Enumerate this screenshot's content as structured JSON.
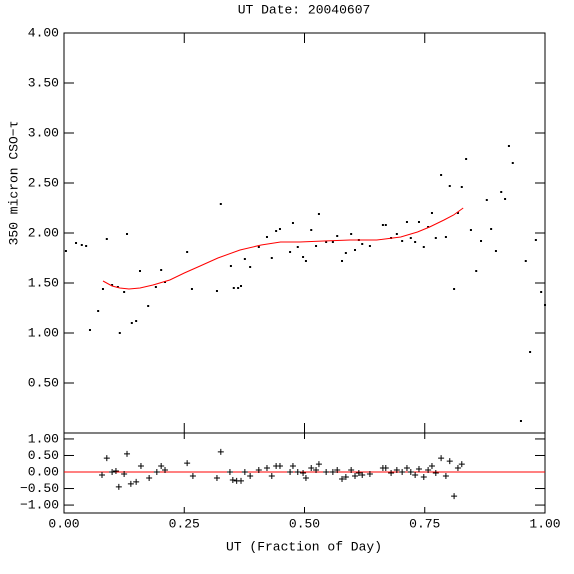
{
  "chart_data": [
    {
      "type": "scatter",
      "title": "UT Date: 20040607",
      "y_label": "350 micron CSO−τ",
      "xlim": [
        0,
        1
      ],
      "xticks": [
        0,
        0.25,
        0.5,
        0.75,
        1
      ],
      "ylim": [
        0,
        4
      ],
      "yticks": [
        {
          "value": 0.5,
          "label": "0.50"
        },
        {
          "value": 1,
          "label": "1.00"
        },
        {
          "value": 1.5,
          "label": "1.50"
        },
        {
          "value": 2,
          "label": "2.00"
        },
        {
          "value": 2.5,
          "label": "2.50"
        },
        {
          "value": 3,
          "label": "3.00"
        },
        {
          "value": 3.5,
          "label": "3.50"
        },
        {
          "value": 4,
          "label": "4.00"
        }
      ],
      "series": [
        {
          "marker": "dot",
          "color": "#000000",
          "x": [
            0.004,
            0.025,
            0.037,
            0.046,
            0.054,
            0.071,
            0.081,
            0.089,
            0.1,
            0.112,
            0.116,
            0.125,
            0.131,
            0.141,
            0.15,
            0.158,
            0.175,
            0.191,
            0.202,
            0.21,
            0.256,
            0.266,
            0.318,
            0.326,
            0.347,
            0.353,
            0.362,
            0.368,
            0.376,
            0.387,
            0.405,
            0.422,
            0.432,
            0.441,
            0.449,
            0.47,
            0.476,
            0.486,
            0.497,
            0.503,
            0.514,
            0.524,
            0.53,
            0.545,
            0.559,
            0.568,
            0.578,
            0.586,
            0.597,
            0.605,
            0.613,
            0.62,
            0.636,
            0.663,
            0.669,
            0.68,
            0.692,
            0.703,
            0.713,
            0.721,
            0.73,
            0.738,
            0.748,
            0.757,
            0.765,
            0.773,
            0.784,
            0.794,
            0.802,
            0.811,
            0.819,
            0.827,
            0.836,
            0.846,
            0.857,
            0.867,
            0.879,
            0.888,
            0.898,
            0.909,
            0.917,
            0.925,
            0.933,
            0.95,
            0.96,
            0.969,
            0.981,
            0.992,
            1.0
          ],
          "values": [
            1.82,
            1.9,
            1.88,
            1.87,
            1.03,
            1.22,
            1.44,
            1.94,
            1.48,
            1.46,
            1.0,
            1.41,
            1.99,
            1.1,
            1.12,
            1.62,
            1.27,
            1.46,
            1.63,
            1.51,
            1.81,
            1.44,
            1.42,
            2.29,
            1.67,
            1.45,
            1.45,
            1.47,
            1.74,
            1.66,
            1.86,
            1.96,
            1.75,
            2.02,
            2.04,
            1.81,
            2.1,
            1.86,
            1.76,
            1.72,
            2.03,
            1.87,
            2.19,
            1.91,
            1.91,
            1.97,
            1.72,
            1.8,
            1.99,
            1.83,
            1.93,
            1.89,
            1.87,
            2.08,
            2.08,
            1.95,
            1.99,
            1.92,
            2.11,
            1.95,
            1.91,
            2.11,
            1.86,
            2.06,
            2.2,
            1.95,
            2.58,
            1.96,
            2.47,
            1.44,
            2.2,
            2.46,
            2.74,
            2.03,
            1.62,
            1.92,
            2.33,
            2.04,
            1.82,
            2.41,
            2.34,
            2.87,
            2.7,
            0.12,
            1.72,
            0.81,
            1.93,
            1.41,
            1.28
          ]
        },
        {
          "marker": "line",
          "color": "#ff0000",
          "x": [
            0.081,
            0.1,
            0.116,
            0.135,
            0.158,
            0.185,
            0.22,
            0.25,
            0.283,
            0.32,
            0.366,
            0.41,
            0.45,
            0.49,
            0.54,
            0.595,
            0.65,
            0.7,
            0.735,
            0.76,
            0.79,
            0.81,
            0.83
          ],
          "values": [
            1.52,
            1.47,
            1.45,
            1.44,
            1.45,
            1.48,
            1.53,
            1.6,
            1.67,
            1.75,
            1.83,
            1.88,
            1.91,
            1.91,
            1.92,
            1.93,
            1.93,
            1.96,
            2.01,
            2.06,
            2.13,
            2.18,
            2.25
          ]
        }
      ]
    },
    {
      "type": "scatter",
      "x_label": "UT (Fraction of Day)",
      "xlim": [
        0,
        1
      ],
      "xticks": [
        {
          "value": 0,
          "label": "0.00"
        },
        {
          "value": 0.25,
          "label": "0.25"
        },
        {
          "value": 0.5,
          "label": "0.50"
        },
        {
          "value": 0.75,
          "label": "0.75"
        },
        {
          "value": 1,
          "label": "1.00"
        }
      ],
      "ylim": [
        -1.24,
        1.18
      ],
      "yticks": [
        {
          "value": -1,
          "label": "−1.00"
        },
        {
          "value": -0.5,
          "label": "−0.50"
        },
        {
          "value": 0,
          "label": "0.00"
        },
        {
          "value": 0.5,
          "label": "0.50"
        },
        {
          "value": 1,
          "label": "1.00"
        }
      ],
      "hline": {
        "value": 0,
        "color": "#ff0000"
      },
      "series": [
        {
          "marker": "plus",
          "color": "#000000",
          "x": [
            0.079,
            0.089,
            0.1,
            0.108,
            0.114,
            0.125,
            0.131,
            0.139,
            0.15,
            0.16,
            0.177,
            0.193,
            0.202,
            0.21,
            0.256,
            0.268,
            0.318,
            0.326,
            0.345,
            0.351,
            0.359,
            0.368,
            0.376,
            0.387,
            0.405,
            0.422,
            0.432,
            0.441,
            0.449,
            0.47,
            0.476,
            0.486,
            0.497,
            0.503,
            0.514,
            0.524,
            0.53,
            0.545,
            0.559,
            0.568,
            0.578,
            0.586,
            0.597,
            0.605,
            0.613,
            0.62,
            0.636,
            0.663,
            0.669,
            0.68,
            0.692,
            0.703,
            0.713,
            0.721,
            0.73,
            0.738,
            0.748,
            0.757,
            0.765,
            0.773,
            0.784,
            0.794,
            0.802,
            0.811,
            0.819,
            0.827
          ],
          "values": [
            -0.09,
            0.42,
            0.0,
            0.03,
            -0.45,
            -0.06,
            0.55,
            -0.36,
            -0.3,
            0.18,
            -0.18,
            0.0,
            0.18,
            0.06,
            0.27,
            -0.12,
            -0.18,
            0.61,
            0.0,
            -0.24,
            -0.27,
            -0.27,
            0.0,
            -0.12,
            0.06,
            0.12,
            -0.12,
            0.18,
            0.18,
            0.0,
            0.18,
            0.0,
            -0.03,
            -0.18,
            0.12,
            0.06,
            0.24,
            0.0,
            0.0,
            0.06,
            -0.21,
            -0.15,
            0.06,
            -0.12,
            -0.03,
            -0.09,
            -0.06,
            0.12,
            0.12,
            -0.03,
            0.06,
            0.0,
            0.12,
            0.0,
            -0.09,
            0.09,
            -0.15,
            0.06,
            0.18,
            -0.03,
            0.42,
            -0.12,
            0.33,
            -0.73,
            0.12,
            0.24
          ]
        }
      ]
    }
  ]
}
